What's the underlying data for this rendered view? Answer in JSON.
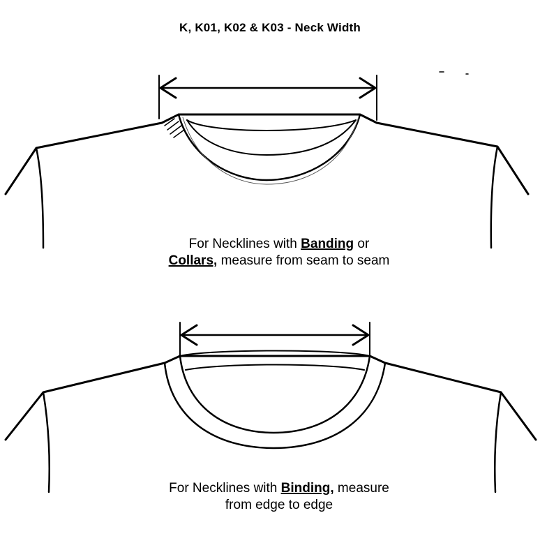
{
  "title": "K, K01, K02 & K03 - Neck Width",
  "top_figure": {
    "caption": {
      "part1": "For Necklines with ",
      "emph1": "Banding",
      "part2": " or",
      "emph2": "Collars,",
      "part3": " measure from seam to seam"
    }
  },
  "bottom_figure": {
    "caption": {
      "part1": "For Necklines with ",
      "emph1": "Binding,",
      "part2": " measure",
      "line2": "from edge to edge"
    }
  }
}
